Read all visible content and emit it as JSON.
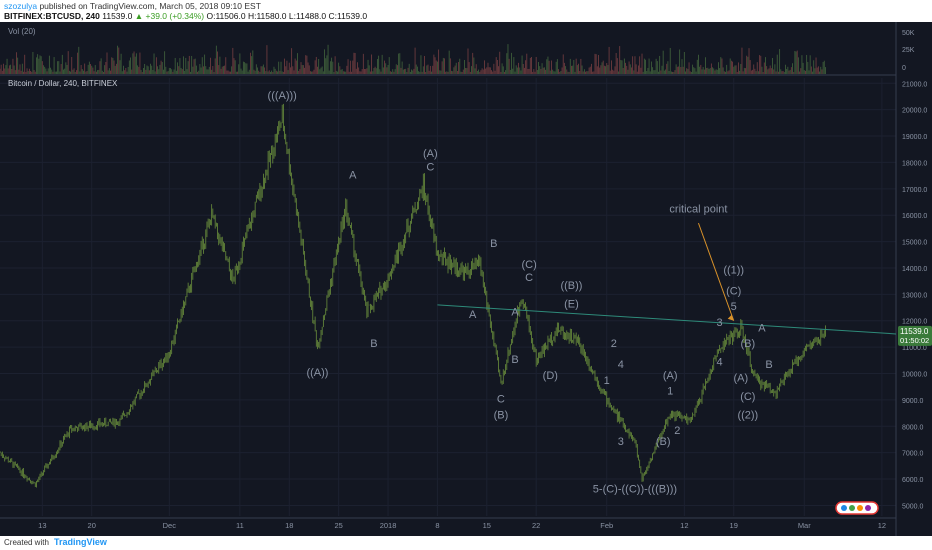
{
  "header": {
    "publisher": "szozulya",
    "published_text": "published on TradingView.com, March 05, 2018 09:10 EST",
    "symbol": "BITFINEX:BTCUSD, 240",
    "change": "▲ +39.0 (+0.34%)",
    "open": "O:11506.0",
    "high": "H:11580.0",
    "low": "L:11488.0",
    "close": "C:11539.0"
  },
  "footer": {
    "created_with": "Created with",
    "brand": "TradingView"
  },
  "colors": {
    "background": "#131722",
    "candle": "#6a8f3c",
    "wave_label": "#8a93a4",
    "trendline": "#2e8b7a",
    "arrow": "#d9922a",
    "price_badge": "#3a7a3a"
  },
  "chart_data": {
    "type": "line",
    "title": "Bitcoin / Dollar, 240, BITFINEX",
    "volume_label": "Vol (20)",
    "volume_ticks": [
      "50K",
      "25K",
      "0"
    ],
    "x_ticks": [
      "13",
      "20",
      "Dec",
      "11",
      "18",
      "25",
      "2018",
      "8",
      "15",
      "22",
      "Feb",
      "12",
      "19",
      "Mar",
      "12"
    ],
    "y_ticks": [
      21000,
      20000,
      19000,
      18000,
      17000,
      16000,
      15000,
      14000,
      13000,
      12000,
      11000,
      10000,
      9000,
      8000,
      7000,
      6000,
      5000
    ],
    "ylim": [
      4600,
      21200
    ],
    "last_price": "11539.0",
    "countdown": "01:50:02",
    "series": [
      {
        "x": [
          "2017-11-07",
          "2017-11-12",
          "2017-11-17",
          "2017-11-24",
          "2017-12-01",
          "2017-12-07",
          "2017-12-10",
          "2017-12-17",
          "2017-12-22",
          "2017-12-26",
          "2017-12-29",
          "2018-01-01",
          "2018-01-06",
          "2018-01-08",
          "2018-01-12",
          "2018-01-14",
          "2018-01-17",
          "2018-01-20",
          "2018-01-22",
          "2018-01-25",
          "2018-01-28",
          "2018-02-01",
          "2018-02-05",
          "2018-02-06",
          "2018-02-10",
          "2018-02-13",
          "2018-02-17",
          "2018-02-20",
          "2018-02-22",
          "2018-02-25",
          "2018-03-01",
          "2018-03-04"
        ],
        "values": [
          7000,
          5800,
          7900,
          8200,
          10800,
          16000,
          13500,
          19700,
          11000,
          16300,
          12300,
          13600,
          17100,
          14500,
          13800,
          14200,
          9600,
          13000,
          10500,
          11700,
          11200,
          9000,
          7400,
          6000,
          8500,
          8200,
          11000,
          11700,
          9800,
          9300,
          10900,
          11500
        ]
      }
    ],
    "wave_labels": [
      {
        "text": "(((A)))",
        "date": "2017-12-17",
        "price": 20400
      },
      {
        "text": "((A))",
        "date": "2017-12-22",
        "price": 9900
      },
      {
        "text": "A",
        "date": "2017-12-27",
        "price": 17400
      },
      {
        "text": "B",
        "date": "2017-12-30",
        "price": 11000
      },
      {
        "text": "(A)",
        "date": "2018-01-07",
        "price": 18200
      },
      {
        "text": "C",
        "date": "2018-01-07",
        "price": 17700
      },
      {
        "text": "A",
        "date": "2018-01-13",
        "price": 12100
      },
      {
        "text": "B",
        "date": "2018-01-16",
        "price": 14800
      },
      {
        "text": "C",
        "date": "2018-01-17",
        "price": 8900
      },
      {
        "text": "(B)",
        "date": "2018-01-17",
        "price": 8300
      },
      {
        "text": "(C)",
        "date": "2018-01-21",
        "price": 14000
      },
      {
        "text": "C",
        "date": "2018-01-21",
        "price": 13500
      },
      {
        "text": "A",
        "date": "2018-01-19",
        "price": 12200
      },
      {
        "text": "B",
        "date": "2018-01-19",
        "price": 10400
      },
      {
        "text": "(D)",
        "date": "2018-01-24",
        "price": 9800
      },
      {
        "text": "((B))",
        "date": "2018-01-27",
        "price": 13200
      },
      {
        "text": "(E)",
        "date": "2018-01-27",
        "price": 12500
      },
      {
        "text": "2",
        "date": "2018-02-02",
        "price": 11000
      },
      {
        "text": "1",
        "date": "2018-02-01",
        "price": 9600
      },
      {
        "text": "4",
        "date": "2018-02-03",
        "price": 10200
      },
      {
        "text": "3",
        "date": "2018-02-03",
        "price": 7300
      },
      {
        "text": "5-(C)-((C))-(((B)))",
        "date": "2018-02-05",
        "price": 5500
      },
      {
        "text": "(A)",
        "date": "2018-02-10",
        "price": 9800
      },
      {
        "text": "1",
        "date": "2018-02-10",
        "price": 9200
      },
      {
        "text": "(B)",
        "date": "2018-02-09",
        "price": 7300
      },
      {
        "text": "2",
        "date": "2018-02-11",
        "price": 7700
      },
      {
        "text": "critical point",
        "date": "2018-02-14",
        "price": 16100
      },
      {
        "text": "((1))",
        "date": "2018-02-19",
        "price": 13800
      },
      {
        "text": "(C)",
        "date": "2018-02-19",
        "price": 13000
      },
      {
        "text": "5",
        "date": "2018-02-19",
        "price": 12400
      },
      {
        "text": "3",
        "date": "2018-02-17",
        "price": 11800
      },
      {
        "text": "4",
        "date": "2018-02-17",
        "price": 10300
      },
      {
        "text": "(B)",
        "date": "2018-02-21",
        "price": 11000
      },
      {
        "text": "(A)",
        "date": "2018-02-20",
        "price": 9700
      },
      {
        "text": "(C)",
        "date": "2018-02-21",
        "price": 9000
      },
      {
        "text": "((2))",
        "date": "2018-02-21",
        "price": 8300
      },
      {
        "text": "A",
        "date": "2018-02-23",
        "price": 11600
      },
      {
        "text": "B",
        "date": "2018-02-24",
        "price": 10200
      }
    ]
  }
}
